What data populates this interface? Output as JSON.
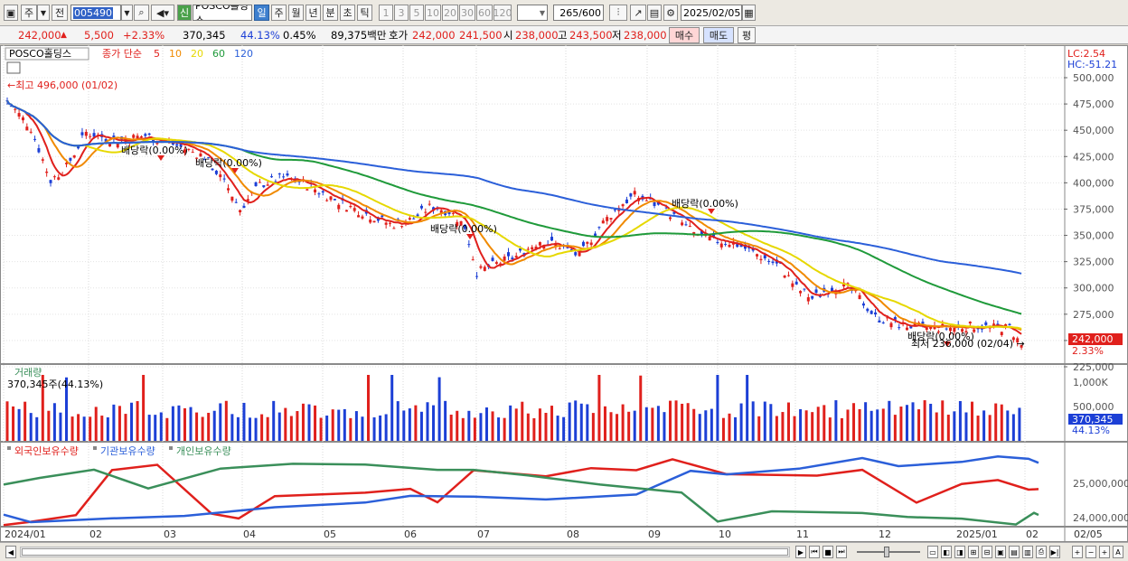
{
  "toolbar": {
    "period_tabs": [
      "주",
      "전"
    ],
    "code": "005490",
    "name": "POSCO홀딩스",
    "new_badge": "신",
    "interval_tabs": [
      {
        "label": "일",
        "active": true
      },
      {
        "label": "주",
        "active": false
      },
      {
        "label": "월",
        "active": false
      },
      {
        "label": "년",
        "active": false
      },
      {
        "label": "분",
        "active": false
      },
      {
        "label": "초",
        "active": false
      },
      {
        "label": "틱",
        "active": false
      }
    ],
    "minute_options": [
      "1",
      "3",
      "5",
      "10",
      "20",
      "30",
      "60",
      "120"
    ],
    "count_value": "265",
    "count_total": "/600",
    "date": "2025/02/05"
  },
  "quote": {
    "price": "242,000",
    "change": "5,500",
    "change_pct": "+2.33%",
    "volume": "370,345",
    "volume_ratio": "44.13%",
    "turnover_rate": "0.45%",
    "amount": "89,375백만",
    "ask_label": "호가",
    "ask": "242,000",
    "bid": "241,500",
    "open_label": "시",
    "open": "238,000",
    "high_label": "고",
    "high": "243,500",
    "low_label": "저",
    "low": "238,000",
    "buy_button": "매수",
    "sell_button": "매도",
    "eval_button": "평"
  },
  "price_panel": {
    "legend_name": "POSCO홀딩스",
    "legend_type": "종가 단순",
    "ma_periods": [
      {
        "label": "5",
        "color": "#e0201c"
      },
      {
        "label": "10",
        "color": "#f08a00"
      },
      {
        "label": "20",
        "color": "#e6d800"
      },
      {
        "label": "60",
        "color": "#1f9a3a"
      },
      {
        "label": "120",
        "color": "#2b5fd9"
      }
    ],
    "lc": "LC:2.54",
    "hc": "HC:-51.21",
    "y_ticks": [
      "500,000",
      "475,000",
      "450,000",
      "425,000",
      "400,000",
      "375,000",
      "350,000",
      "325,000",
      "300,000",
      "275,000",
      "250,000",
      "225,000"
    ],
    "max_label": "최고 496,000 (01/02)",
    "min_label": "최저 236,000 (02/04)",
    "last_price": "242,000",
    "last_pct": "2.33%",
    "dividend_label": "배당락(0.00%)"
  },
  "volume_panel": {
    "title": "거래량",
    "current": "370,345주(44.13%)",
    "y_ticks": [
      "1,000K",
      "500,000"
    ],
    "last_value": "370,345",
    "last_pct": "44.13%"
  },
  "holdings_panel": {
    "series": [
      {
        "name": "외국인보유수량",
        "color": "#e0201c"
      },
      {
        "name": "기관보유수량",
        "color": "#2b5fd9"
      },
      {
        "name": "개인보유수량",
        "color": "#3a8f5a"
      }
    ],
    "y_ticks": [
      "25,000,000",
      "24,000,000"
    ]
  },
  "x_axis": {
    "labels": [
      "2024/01",
      "02",
      "03",
      "04",
      "05",
      "06",
      "07",
      "08",
      "09",
      "10",
      "11",
      "12",
      "2025/01",
      "02",
      "02/05"
    ]
  },
  "colors": {
    "up": "#e0201c",
    "down": "#1c3fd6"
  }
}
